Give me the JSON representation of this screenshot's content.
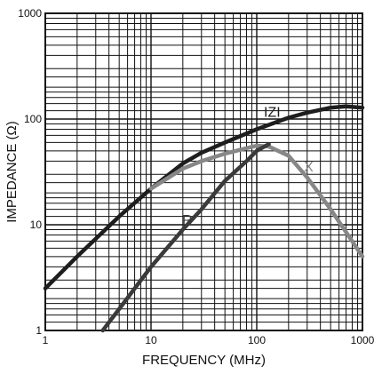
{
  "chart_data": {
    "type": "line",
    "x_scale": "log",
    "y_scale": "log",
    "xlabel": "FREQUENCY (MHz)",
    "ylabel": "IMPEDANCE (Ω)",
    "xlim": [
      1,
      1000
    ],
    "ylim": [
      1,
      1000
    ],
    "grid": true,
    "x_ticks": [
      {
        "value": 1,
        "label": "1"
      },
      {
        "value": 10,
        "label": "10"
      },
      {
        "value": 100,
        "label": "100"
      },
      {
        "value": 1000,
        "label": "1000"
      }
    ],
    "y_ticks": [
      {
        "value": 1,
        "label": "1"
      },
      {
        "value": 10,
        "label": "10"
      },
      {
        "value": 100,
        "label": "100"
      },
      {
        "value": 1000,
        "label": "1000"
      }
    ],
    "series": [
      {
        "name": "IZI",
        "color": "#1e1e1e",
        "x": [
          1,
          2,
          5,
          10,
          20,
          30,
          50,
          100,
          200,
          300,
          500,
          700,
          1000
        ],
        "y": [
          2.5,
          5,
          12,
          22,
          38,
          48,
          60,
          80,
          103,
          115,
          128,
          132,
          128
        ]
      },
      {
        "name": "X",
        "color": "#878787",
        "x": [
          10,
          20,
          30,
          50,
          80,
          100,
          130,
          200,
          300,
          500,
          700,
          1000
        ],
        "y": [
          22,
          34,
          40,
          47,
          53,
          56,
          55,
          45,
          28,
          14,
          8.5,
          5
        ]
      },
      {
        "name": "R",
        "color": "#3a3a3a",
        "x": [
          3.5,
          5,
          10,
          20,
          30,
          50,
          80,
          100,
          130
        ],
        "y": [
          1,
          1.6,
          4,
          9,
          14,
          26,
          40,
          50,
          58
        ]
      }
    ],
    "annotations": [
      {
        "text": "IZI",
        "x": 140,
        "y": 105
      },
      {
        "text": "X",
        "x": 310,
        "y": 32
      },
      {
        "text": "R",
        "x": 22,
        "y": 10
      }
    ]
  }
}
